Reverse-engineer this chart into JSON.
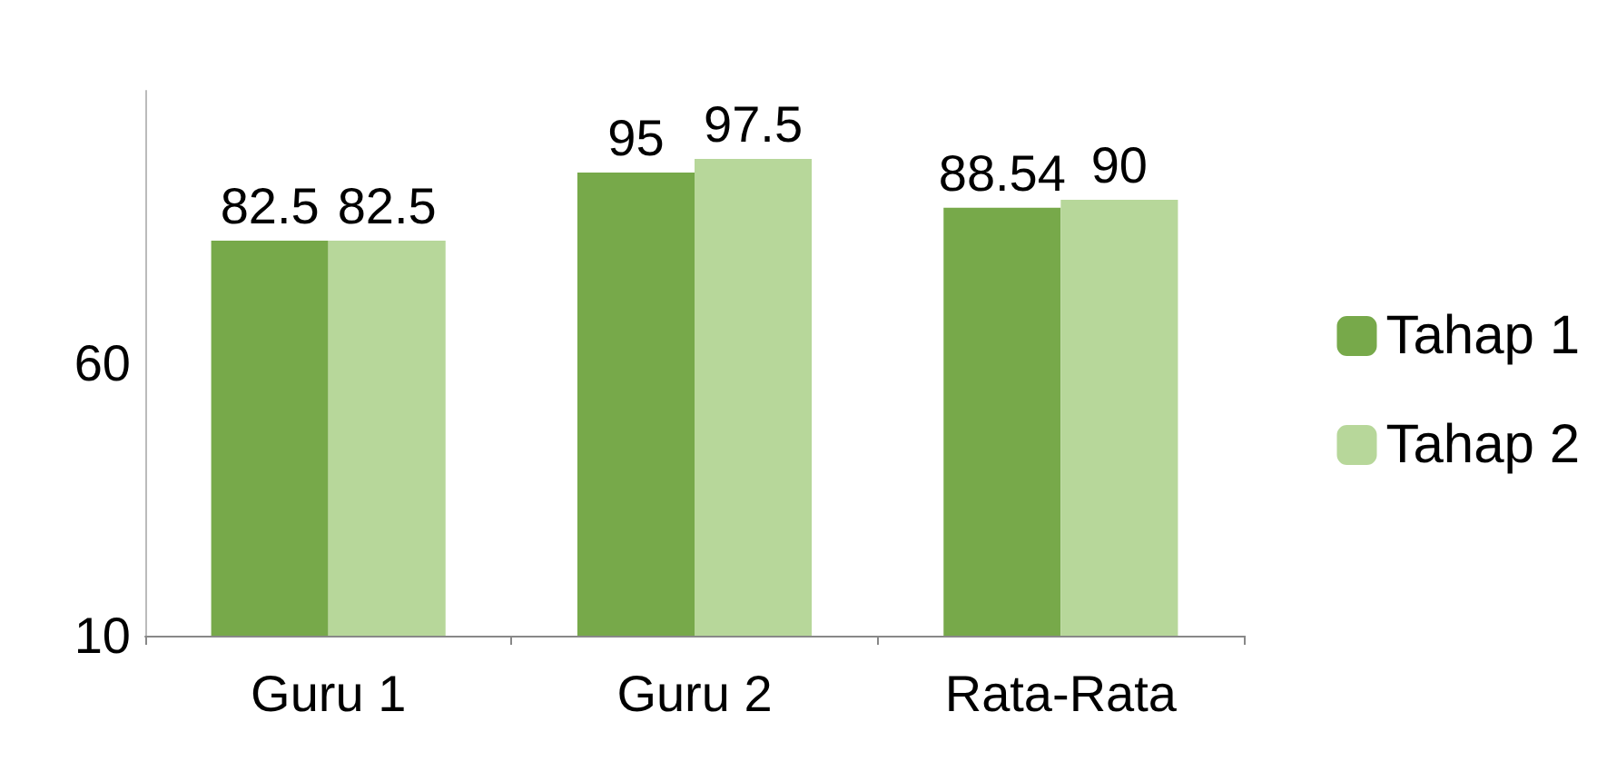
{
  "chart_data": {
    "type": "bar",
    "categories": [
      "Guru 1",
      "Guru 2",
      "Rata-Rata"
    ],
    "series": [
      {
        "name": "Tahap 1",
        "color": "#77a94a",
        "values": [
          82.5,
          95,
          88.54
        ]
      },
      {
        "name": "Tahap 2",
        "color": "#b7d79a",
        "values": [
          82.5,
          97.5,
          90
        ]
      }
    ],
    "ylim": [
      10,
      110
    ],
    "yticks": [
      10,
      60
    ],
    "grid": false,
    "legend": "right",
    "data_labels": true
  }
}
